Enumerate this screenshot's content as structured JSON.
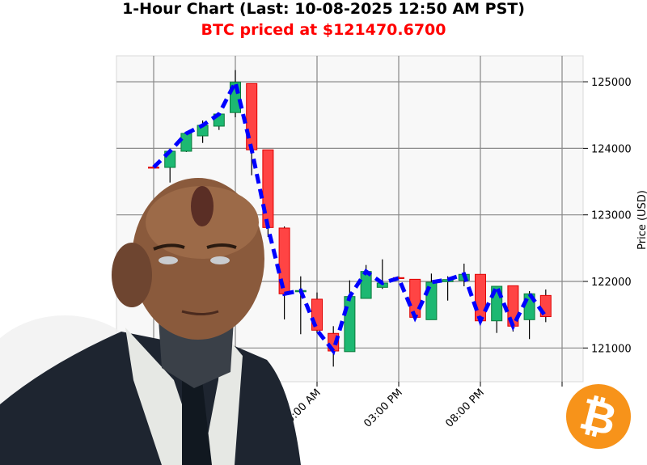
{
  "header": {
    "title": "1-Hour Chart (Last: 10-08-2025 12:50 AM PST)",
    "subtitle": "BTC priced at $121470.6700"
  },
  "colors": {
    "up": "#1db872",
    "down": "#ff4444",
    "line": "#0000ff",
    "subtitle": "#ff0000",
    "bitcoin": "#f7931a"
  },
  "icons": {
    "logo": "bitcoin-logo-icon",
    "illustration": "android-businessman-portrait"
  },
  "chart_data": {
    "type": "candlestick",
    "title": "1-Hour Chart (Last: 10-08-2025 12:50 AM PST)",
    "ylabel": "Price (USD)",
    "xlabel": "",
    "ylim": [
      120490,
      125390
    ],
    "xlim": [
      "2025-10-06 21:43",
      "2025-10-08 02:13"
    ],
    "grid": true,
    "yticks": [
      121000,
      122000,
      123000,
      124000,
      125000
    ],
    "xticks": [
      {
        "x": "2025-10-07 00:00",
        "label": ""
      },
      {
        "x": "2025-10-07 05:00",
        "label": ""
      },
      {
        "x": "2025-10-07 10:00",
        "label": "10:00 AM"
      },
      {
        "x": "2025-10-07 15:00",
        "label": "03:00 PM"
      },
      {
        "x": "2025-10-07 20:00",
        "label": "08:00 PM"
      },
      {
        "x": "2025-10-08 01:00",
        "label": ""
      }
    ],
    "overlay_line": "close (dashed)",
    "candles": [
      {
        "x": "2025-10-07 00:00",
        "open": 123717,
        "high": 123720,
        "low": 123714,
        "close": 123715
      },
      {
        "x": "2025-10-07 01:00",
        "open": 123713,
        "high": 123960,
        "low": 123486,
        "close": 123956
      },
      {
        "x": "2025-10-07 02:00",
        "open": 123956,
        "high": 124224,
        "low": 123945,
        "close": 124224
      },
      {
        "x": "2025-10-07 03:00",
        "open": 124187,
        "high": 124418,
        "low": 124081,
        "close": 124345
      },
      {
        "x": "2025-10-07 04:00",
        "open": 124333,
        "high": 124515,
        "low": 124276,
        "close": 124515
      },
      {
        "x": "2025-10-07 05:00",
        "open": 124537,
        "high": 125175,
        "low": 124466,
        "close": 124993
      },
      {
        "x": "2025-10-07 06:00",
        "open": 124973,
        "high": 124973,
        "low": 123595,
        "close": 123977
      },
      {
        "x": "2025-10-07 07:00",
        "open": 123977,
        "high": 123977,
        "low": 122668,
        "close": 122810
      },
      {
        "x": "2025-10-07 08:00",
        "open": 122802,
        "high": 122826,
        "low": 121429,
        "close": 121814
      },
      {
        "x": "2025-10-07 09:00",
        "open": 121845,
        "high": 122077,
        "low": 121207,
        "close": 121863
      },
      {
        "x": "2025-10-07 10:00",
        "open": 121733,
        "high": 121834,
        "low": 121226,
        "close": 121267
      },
      {
        "x": "2025-10-07 11:00",
        "open": 121219,
        "high": 121328,
        "low": 120720,
        "close": 120955
      },
      {
        "x": "2025-10-07 12:00",
        "open": 120945,
        "high": 122016,
        "low": 120945,
        "close": 121773
      },
      {
        "x": "2025-10-07 13:00",
        "open": 121745,
        "high": 122247,
        "low": 121745,
        "close": 122150
      },
      {
        "x": "2025-10-07 14:00",
        "open": 121911,
        "high": 122332,
        "low": 121887,
        "close": 121976
      },
      {
        "x": "2025-10-07 15:00",
        "open": 122057,
        "high": 122077,
        "low": 122045,
        "close": 122050
      },
      {
        "x": "2025-10-07 16:00",
        "open": 122032,
        "high": 122032,
        "low": 121461,
        "close": 121461
      },
      {
        "x": "2025-10-07 17:00",
        "open": 121425,
        "high": 122118,
        "low": 121425,
        "close": 121988
      },
      {
        "x": "2025-10-07 18:00",
        "open": 121996,
        "high": 122077,
        "low": 121712,
        "close": 122028
      },
      {
        "x": "2025-10-07 19:00",
        "open": 122016,
        "high": 122267,
        "low": 121927,
        "close": 122106
      },
      {
        "x": "2025-10-07 20:00",
        "open": 122106,
        "high": 122106,
        "low": 121368,
        "close": 121408
      },
      {
        "x": "2025-10-07 21:00",
        "open": 121408,
        "high": 121927,
        "low": 121226,
        "close": 121927
      },
      {
        "x": "2025-10-07 22:00",
        "open": 121935,
        "high": 121935,
        "low": 121247,
        "close": 121328
      },
      {
        "x": "2025-10-07 23:00",
        "open": 121425,
        "high": 121854,
        "low": 121134,
        "close": 121814
      },
      {
        "x": "2025-10-08 00:00",
        "open": 121789,
        "high": 121879,
        "low": 121388,
        "close": 121471
      }
    ]
  }
}
